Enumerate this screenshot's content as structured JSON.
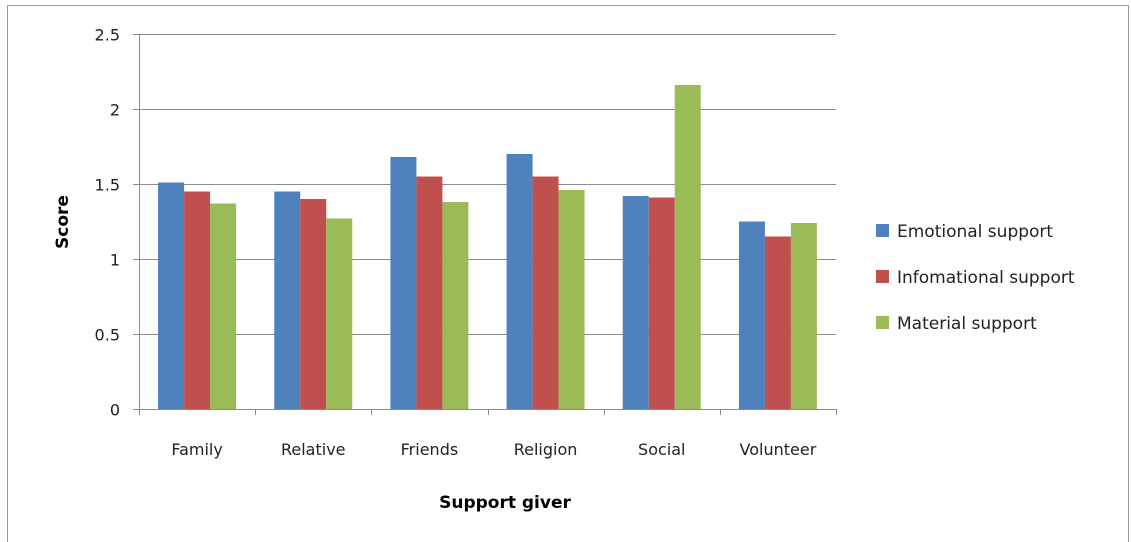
{
  "chart_data": {
    "type": "bar",
    "xlabel": "Support giver",
    "ylabel": "Score",
    "categories": [
      "Family",
      "Relative",
      "Friends",
      "Religion",
      "Social",
      "Volunteer"
    ],
    "ylim": [
      0,
      2.5
    ],
    "yticks": [
      "0",
      "0.5",
      "1",
      "1.5",
      "2",
      "2.5"
    ],
    "grid": true,
    "legend_position": "right",
    "series": [
      {
        "name": "Emotional support",
        "color": "#4f81bd",
        "values": [
          1.51,
          1.45,
          1.68,
          1.7,
          1.42,
          1.25
        ]
      },
      {
        "name": "Infomational support",
        "color": "#c0504d",
        "values": [
          1.45,
          1.4,
          1.55,
          1.55,
          1.41,
          1.15
        ]
      },
      {
        "name": "Material support",
        "color": "#9bbb59",
        "values": [
          1.37,
          1.27,
          1.38,
          1.46,
          2.16,
          1.24
        ]
      }
    ]
  }
}
